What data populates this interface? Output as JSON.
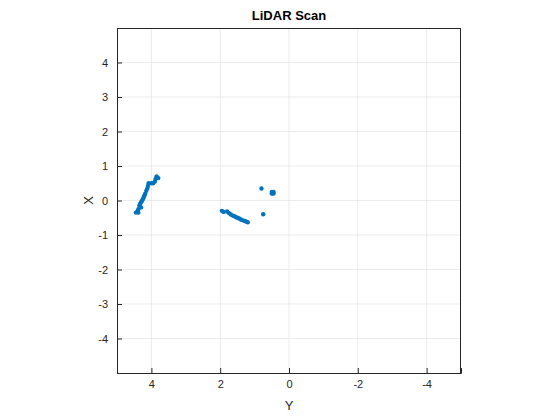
{
  "chart_data": {
    "type": "scatter",
    "title": "LiDAR Scan",
    "xlabel": "Y",
    "ylabel": "X",
    "x": [
      4.45,
      4.4,
      4.38,
      4.35,
      4.33,
      4.3,
      4.27,
      4.24,
      4.22,
      4.2,
      4.18,
      4.15,
      4.12,
      4.1,
      4.08,
      4.0,
      3.95,
      3.9,
      3.88,
      3.85,
      3.8,
      4.38,
      4.3,
      1.95,
      1.9,
      1.8,
      1.75,
      1.7,
      1.65,
      1.6,
      1.55,
      1.5,
      1.45,
      1.4,
      1.35,
      1.3,
      1.25,
      1.2,
      0.8,
      0.75,
      0.5,
      0.5,
      0.45,
      0.45
    ],
    "values": [
      -0.35,
      -0.3,
      -0.25,
      -0.15,
      -0.1,
      -0.05,
      0.0,
      0.05,
      0.1,
      0.15,
      0.2,
      0.28,
      0.35,
      0.42,
      0.5,
      0.5,
      0.5,
      0.55,
      0.62,
      0.7,
      0.65,
      -0.35,
      -0.2,
      -0.3,
      -0.33,
      -0.32,
      -0.36,
      -0.4,
      -0.43,
      -0.45,
      -0.48,
      -0.5,
      -0.52,
      -0.55,
      -0.57,
      -0.59,
      -0.61,
      -0.63,
      0.35,
      -0.4,
      0.25,
      0.2,
      0.2,
      0.25
    ],
    "color": "#0072bd",
    "marker": "point",
    "xlim": [
      5,
      -5
    ],
    "ylim": [
      -5,
      5
    ],
    "xticks": [
      -4,
      -2,
      0,
      2,
      4
    ],
    "yticks": [
      -4,
      -3,
      -2,
      -1,
      0,
      1,
      2,
      3,
      4
    ],
    "grid": true
  }
}
